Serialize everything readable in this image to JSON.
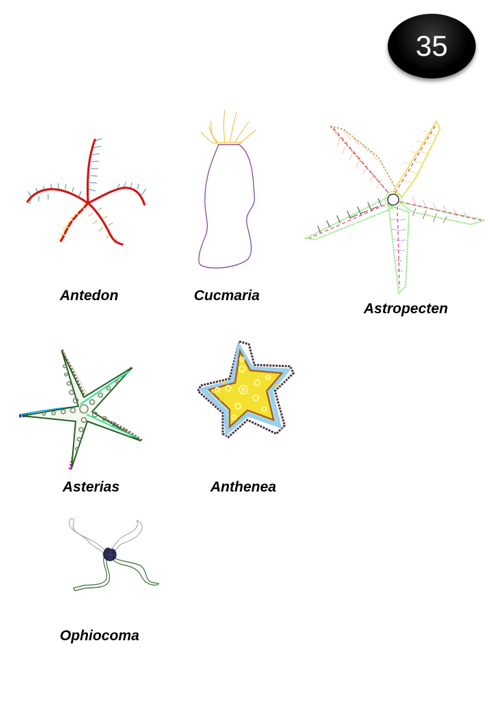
{
  "page_number": "35",
  "specimens": [
    {
      "id": "antedon",
      "name": "Antedon"
    },
    {
      "id": "cucmaria",
      "name": "Cucmaria"
    },
    {
      "id": "astropecten",
      "name": "Astropecten"
    },
    {
      "id": "asterias",
      "name": "Asterias"
    },
    {
      "id": "anthenea",
      "name": "Anthenea"
    },
    {
      "id": "ophiocoma",
      "name": "Ophiocoma"
    }
  ]
}
